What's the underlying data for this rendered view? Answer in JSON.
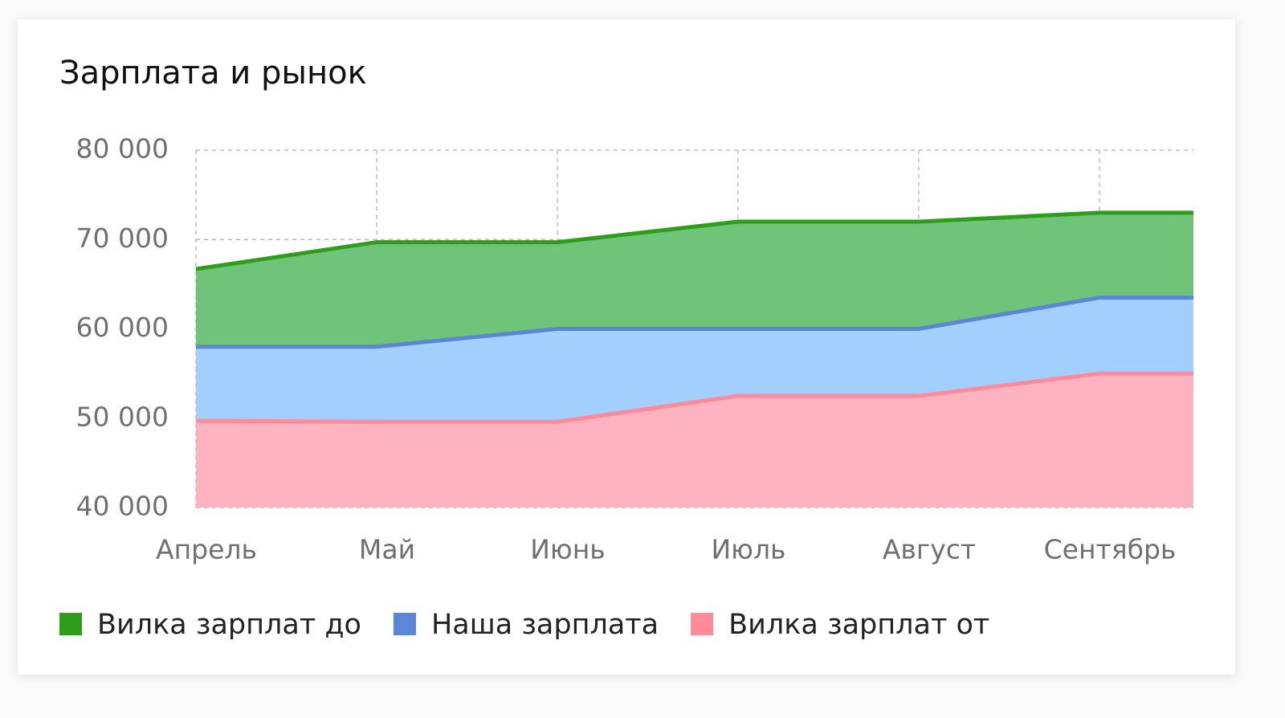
{
  "chart_data": {
    "type": "area",
    "title": "Зарплата и рынок",
    "categories": [
      "Апрель",
      "Май",
      "Июнь",
      "Июль",
      "Август",
      "Сентябрь"
    ],
    "series": [
      {
        "name": "Вилка зарплат до",
        "color": "#2e9e1a",
        "fill": "#6fc47a",
        "values": [
          66700,
          69700,
          69700,
          72000,
          72000,
          73000
        ]
      },
      {
        "name": "Наша зарплата",
        "color": "#5a86d6",
        "fill": "#a2cffe",
        "values": [
          58000,
          58000,
          60000,
          60000,
          60000,
          63500
        ]
      },
      {
        "name": "Вилка зарплат от",
        "color": "#ff8a9a",
        "fill": "#ffb3c0",
        "values": [
          49700,
          49600,
          49600,
          52500,
          52500,
          55000
        ]
      }
    ],
    "ylim": [
      40000,
      80000
    ],
    "yticks": [
      {
        "value": 40000,
        "label": "40 000"
      },
      {
        "value": 50000,
        "label": "50 000"
      },
      {
        "value": 60000,
        "label": "60 000"
      },
      {
        "value": 70000,
        "label": "70 000"
      },
      {
        "value": 80000,
        "label": "80 000"
      }
    ],
    "grid": true,
    "legend": "bottom"
  }
}
